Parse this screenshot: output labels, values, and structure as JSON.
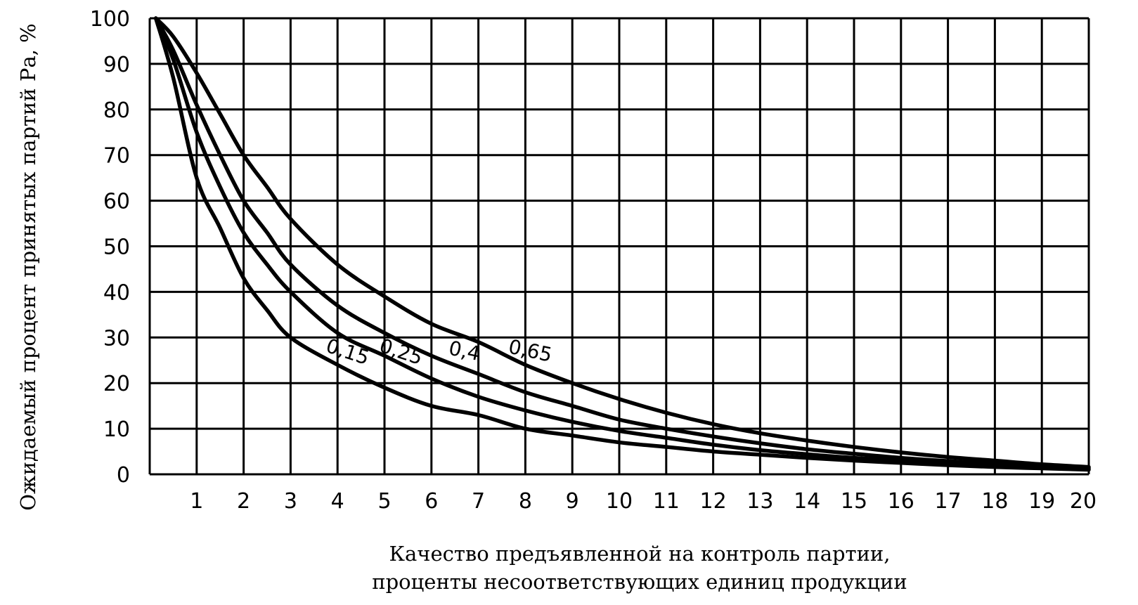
{
  "chart_data": {
    "type": "line",
    "title": "",
    "xlabel": "Качество предъявленной на контроль партии,",
    "xlabel_line2": "проценты несоответствующих единиц продукции",
    "ylabel": "Ожидаемый процент принятых партий Ра, %",
    "xlim": [
      0,
      20
    ],
    "ylim": [
      0,
      100
    ],
    "grid": true,
    "x_ticks": [
      "1",
      "2",
      "3",
      "4",
      "5",
      "6",
      "7",
      "8",
      "9",
      "10",
      "11",
      "12",
      "13",
      "14",
      "15",
      "16",
      "17",
      "18",
      "19",
      "20"
    ],
    "y_ticks": [
      "0",
      "10",
      "20",
      "30",
      "40",
      "50",
      "60",
      "70",
      "80",
      "90",
      "100"
    ],
    "x": [
      0.13,
      0.5,
      1,
      1.5,
      2,
      2.5,
      3,
      4,
      5,
      6,
      7,
      8,
      9,
      10,
      11,
      12,
      13,
      14,
      15,
      16,
      17,
      18,
      19,
      20
    ],
    "series": [
      {
        "name": "0,15",
        "values": [
          100,
          87,
          65,
          54,
          43,
          36,
          30,
          24,
          19,
          15,
          13,
          10,
          8.5,
          7,
          6,
          5,
          4.3,
          3.6,
          3,
          2.5,
          2,
          1.6,
          1.3,
          1
        ]
      },
      {
        "name": "0,25",
        "values": [
          100,
          91,
          75,
          63,
          53,
          46,
          40,
          31,
          26,
          21,
          17,
          14,
          11.5,
          9.5,
          8,
          6.5,
          5.3,
          4.4,
          3.6,
          3,
          2.4,
          1.9,
          1.5,
          1.2
        ]
      },
      {
        "name": "0,4",
        "values": [
          100,
          93,
          81,
          70,
          60,
          53,
          46,
          37,
          31,
          26,
          22,
          18,
          15,
          12,
          10,
          8.3,
          6.8,
          5.5,
          4.5,
          3.6,
          2.9,
          2.3,
          1.8,
          1.4
        ]
      },
      {
        "name": "0,65",
        "values": [
          100,
          96,
          88,
          79,
          70,
          63,
          56,
          46,
          39,
          33,
          29,
          24,
          20,
          16.5,
          13.5,
          11,
          9,
          7.4,
          6,
          4.8,
          3.8,
          3,
          2.2,
          1.6
        ]
      }
    ],
    "curve_labels": [
      "0,15",
      "0,25",
      "0,4",
      "0,65"
    ]
  }
}
